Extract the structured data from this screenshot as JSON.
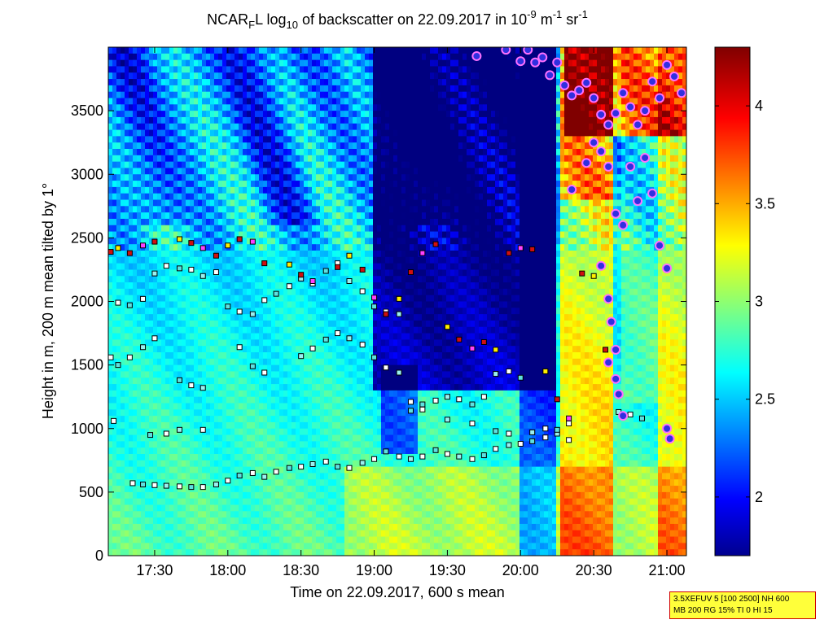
{
  "chart_data": {
    "type": "heatmap",
    "title": {
      "base": "NCAR",
      "sub1": "F",
      "part2": "L log",
      "sub2": "10",
      "part3": " of backscatter on 22.09.2017 in 10",
      "sup1": "-9",
      "part4": " m",
      "sup2": "-1",
      "part5": " sr",
      "sup3": "-1"
    },
    "xlabel": "Time on 22.09.2017, 600 s mean",
    "ylabel": "Height in m, 200 m mean tilted by 1°",
    "x_range_hours": [
      17.1833,
      21.1333
    ],
    "ylim": [
      0,
      4000
    ],
    "x_tick_hours": [
      17.5,
      18.0,
      18.5,
      19.0,
      19.5,
      20.0,
      20.5,
      21.0
    ],
    "x_tick_labels": [
      "17:30",
      "18:00",
      "18:30",
      "19:00",
      "19:30",
      "20:00",
      "20:30",
      "21:00"
    ],
    "y_ticks": [
      0,
      500,
      1000,
      1500,
      2000,
      2500,
      3000,
      3500
    ],
    "y_tick_labels": [
      "0",
      "500",
      "1000",
      "1500",
      "2000",
      "2500",
      "3000",
      "3500"
    ],
    "colorbar": {
      "range": [
        1.7,
        4.3
      ],
      "ticks": [
        2,
        2.5,
        3,
        3.5,
        4
      ],
      "tick_labels": [
        "2",
        "2.5",
        "3",
        "3.5",
        "4"
      ],
      "colormap": "jet"
    },
    "series": [
      {
        "marker": "square-outlined",
        "layers": [
          {
            "points": [
              [
                17.35,
                570
              ],
              [
                17.42,
                560
              ],
              [
                17.5,
                555
              ],
              [
                17.58,
                550
              ],
              [
                17.67,
                545
              ],
              [
                17.75,
                540
              ],
              [
                17.83,
                540
              ],
              [
                17.92,
                560
              ],
              [
                18.0,
                590
              ],
              [
                18.08,
                630
              ],
              [
                18.17,
                650
              ],
              [
                18.25,
                620
              ],
              [
                18.33,
                660
              ],
              [
                18.42,
                690
              ],
              [
                18.5,
                700
              ],
              [
                18.58,
                720
              ],
              [
                18.67,
                740
              ],
              [
                18.75,
                700
              ],
              [
                18.83,
                690
              ],
              [
                18.92,
                730
              ],
              [
                19.0,
                760
              ],
              [
                19.08,
                820
              ],
              [
                19.17,
                780
              ],
              [
                19.25,
                760
              ],
              [
                19.33,
                780
              ],
              [
                19.42,
                830
              ],
              [
                19.5,
                800
              ],
              [
                19.58,
                780
              ],
              [
                19.67,
                760
              ],
              [
                19.75,
                790
              ],
              [
                19.83,
                840
              ],
              [
                19.92,
                870
              ],
              [
                20.0,
                880
              ],
              [
                20.08,
                900
              ],
              [
                20.17,
                930
              ],
              [
                20.25,
                960
              ],
              [
                20.33,
                910
              ]
            ]
          },
          {
            "points": [
              [
                17.2,
                1560
              ],
              [
                17.25,
                1500
              ],
              [
                17.33,
                1560
              ],
              [
                17.42,
                1640
              ],
              [
                17.5,
                1710
              ],
              [
                17.67,
                1380
              ],
              [
                17.75,
                1340
              ],
              [
                17.83,
                1320
              ],
              [
                18.08,
                1640
              ],
              [
                18.17,
                1490
              ],
              [
                18.25,
                1440
              ],
              [
                18.5,
                1570
              ],
              [
                18.58,
                1630
              ],
              [
                18.67,
                1700
              ],
              [
                18.75,
                1750
              ],
              [
                18.83,
                1710
              ],
              [
                18.92,
                1660
              ],
              [
                19.0,
                1560
              ],
              [
                19.08,
                1480
              ],
              [
                19.17,
                1440
              ],
              [
                19.25,
                1210
              ],
              [
                19.33,
                1190
              ],
              [
                19.42,
                1220
              ],
              [
                19.5,
                1250
              ],
              [
                19.58,
                1230
              ],
              [
                19.67,
                1190
              ],
              [
                19.75,
                1250
              ],
              [
                19.83,
                1430
              ],
              [
                19.92,
                1450
              ],
              [
                20.0,
                1400
              ]
            ]
          },
          {
            "points": [
              [
                17.25,
                1990
              ],
              [
                17.33,
                1970
              ],
              [
                17.42,
                2020
              ],
              [
                17.5,
                2220
              ],
              [
                17.58,
                2280
              ],
              [
                17.67,
                2260
              ],
              [
                17.75,
                2250
              ],
              [
                17.83,
                2200
              ],
              [
                17.92,
                2230
              ],
              [
                18.0,
                1960
              ],
              [
                18.08,
                1920
              ],
              [
                18.17,
                1900
              ],
              [
                18.25,
                2010
              ],
              [
                18.33,
                2060
              ],
              [
                18.42,
                2120
              ],
              [
                18.5,
                2180
              ],
              [
                18.58,
                2140
              ],
              [
                18.67,
                2240
              ],
              [
                18.75,
                2300
              ],
              [
                18.83,
                2160
              ],
              [
                18.92,
                2080
              ],
              [
                19.0,
                1960
              ],
              [
                19.08,
                1920
              ],
              [
                19.17,
                1900
              ]
            ]
          },
          {
            "points": [
              [
                17.22,
                1060
              ],
              [
                17.47,
                950
              ],
              [
                17.58,
                960
              ],
              [
                17.67,
                990
              ],
              [
                17.83,
                990
              ],
              [
                19.25,
                1140
              ],
              [
                19.33,
                1150
              ],
              [
                19.5,
                1070
              ],
              [
                19.67,
                1040
              ],
              [
                19.83,
                980
              ],
              [
                19.92,
                960
              ],
              [
                20.08,
                970
              ],
              [
                20.17,
                1000
              ],
              [
                20.25,
                990
              ],
              [
                20.33,
                1040
              ],
              [
                20.67,
                1130
              ],
              [
                20.75,
                1110
              ],
              [
                20.83,
                1080
              ]
            ]
          }
        ]
      },
      {
        "marker": "square-filled",
        "layers": [
          {
            "points": [
              [
                17.2,
                2390
              ],
              [
                17.25,
                2420
              ],
              [
                17.33,
                2380
              ],
              [
                17.42,
                2440
              ],
              [
                17.5,
                2470
              ],
              [
                17.67,
                2490
              ],
              [
                17.75,
                2460
              ],
              [
                17.83,
                2420
              ],
              [
                17.92,
                2360
              ],
              [
                18.0,
                2440
              ],
              [
                18.08,
                2490
              ],
              [
                18.17,
                2470
              ],
              [
                18.25,
                2300
              ],
              [
                18.42,
                2290
              ],
              [
                18.5,
                2210
              ],
              [
                18.58,
                2160
              ],
              [
                18.75,
                2270
              ],
              [
                18.83,
                2360
              ],
              [
                18.92,
                2250
              ],
              [
                19.0,
                2030
              ],
              [
                19.08,
                1900
              ],
              [
                19.17,
                2020
              ],
              [
                19.25,
                2230
              ],
              [
                19.33,
                2380
              ],
              [
                19.42,
                2450
              ],
              [
                19.5,
                1800
              ],
              [
                19.58,
                1700
              ],
              [
                19.67,
                1630
              ],
              [
                19.75,
                1680
              ],
              [
                19.83,
                1620
              ],
              [
                19.92,
                2380
              ],
              [
                20.0,
                2420
              ],
              [
                20.08,
                2410
              ],
              [
                20.17,
                1450
              ],
              [
                20.25,
                1230
              ],
              [
                20.33,
                1080
              ],
              [
                20.42,
                2220
              ],
              [
                20.5,
                2200
              ],
              [
                20.58,
                1620
              ]
            ]
          }
        ]
      },
      {
        "marker": "circle",
        "layers": [
          {
            "points": [
              [
                19.7,
                3930
              ],
              [
                19.9,
                3980
              ],
              [
                20.0,
                3890
              ],
              [
                20.05,
                3980
              ],
              [
                20.1,
                3880
              ],
              [
                20.15,
                3920
              ],
              [
                20.2,
                3780
              ],
              [
                20.25,
                3880
              ],
              [
                20.3,
                3700
              ],
              [
                20.35,
                3620
              ],
              [
                20.4,
                3660
              ],
              [
                20.45,
                3720
              ],
              [
                20.5,
                3600
              ],
              [
                20.55,
                3470
              ],
              [
                20.6,
                3390
              ],
              [
                20.65,
                3480
              ],
              [
                20.7,
                3640
              ],
              [
                20.75,
                3530
              ],
              [
                20.8,
                3390
              ],
              [
                20.85,
                3500
              ],
              [
                20.9,
                3730
              ],
              [
                20.95,
                3600
              ],
              [
                21.0,
                3860
              ],
              [
                21.05,
                3770
              ],
              [
                21.1,
                3640
              ],
              [
                20.35,
                2880
              ],
              [
                20.45,
                3090
              ],
              [
                20.5,
                3250
              ],
              [
                20.55,
                3180
              ],
              [
                20.6,
                3060
              ],
              [
                20.65,
                2690
              ],
              [
                20.7,
                2600
              ],
              [
                20.75,
                3060
              ],
              [
                20.8,
                2790
              ],
              [
                20.85,
                3130
              ],
              [
                20.9,
                2850
              ],
              [
                20.95,
                2440
              ],
              [
                21.0,
                2260
              ],
              [
                20.55,
                2280
              ],
              [
                20.6,
                2020
              ],
              [
                20.62,
                1840
              ],
              [
                20.65,
                1620
              ],
              [
                20.6,
                1520
              ],
              [
                20.65,
                1390
              ],
              [
                20.67,
                1270
              ],
              [
                20.7,
                1100
              ],
              [
                21.0,
                1000
              ],
              [
                21.02,
                920
              ]
            ]
          }
        ]
      }
    ]
  },
  "info_box": {
    "line1": "3.5XEFUV 5 [100 2500] NH 600",
    "line2": "MB 200 RG 15% TI 0 HI 15"
  }
}
